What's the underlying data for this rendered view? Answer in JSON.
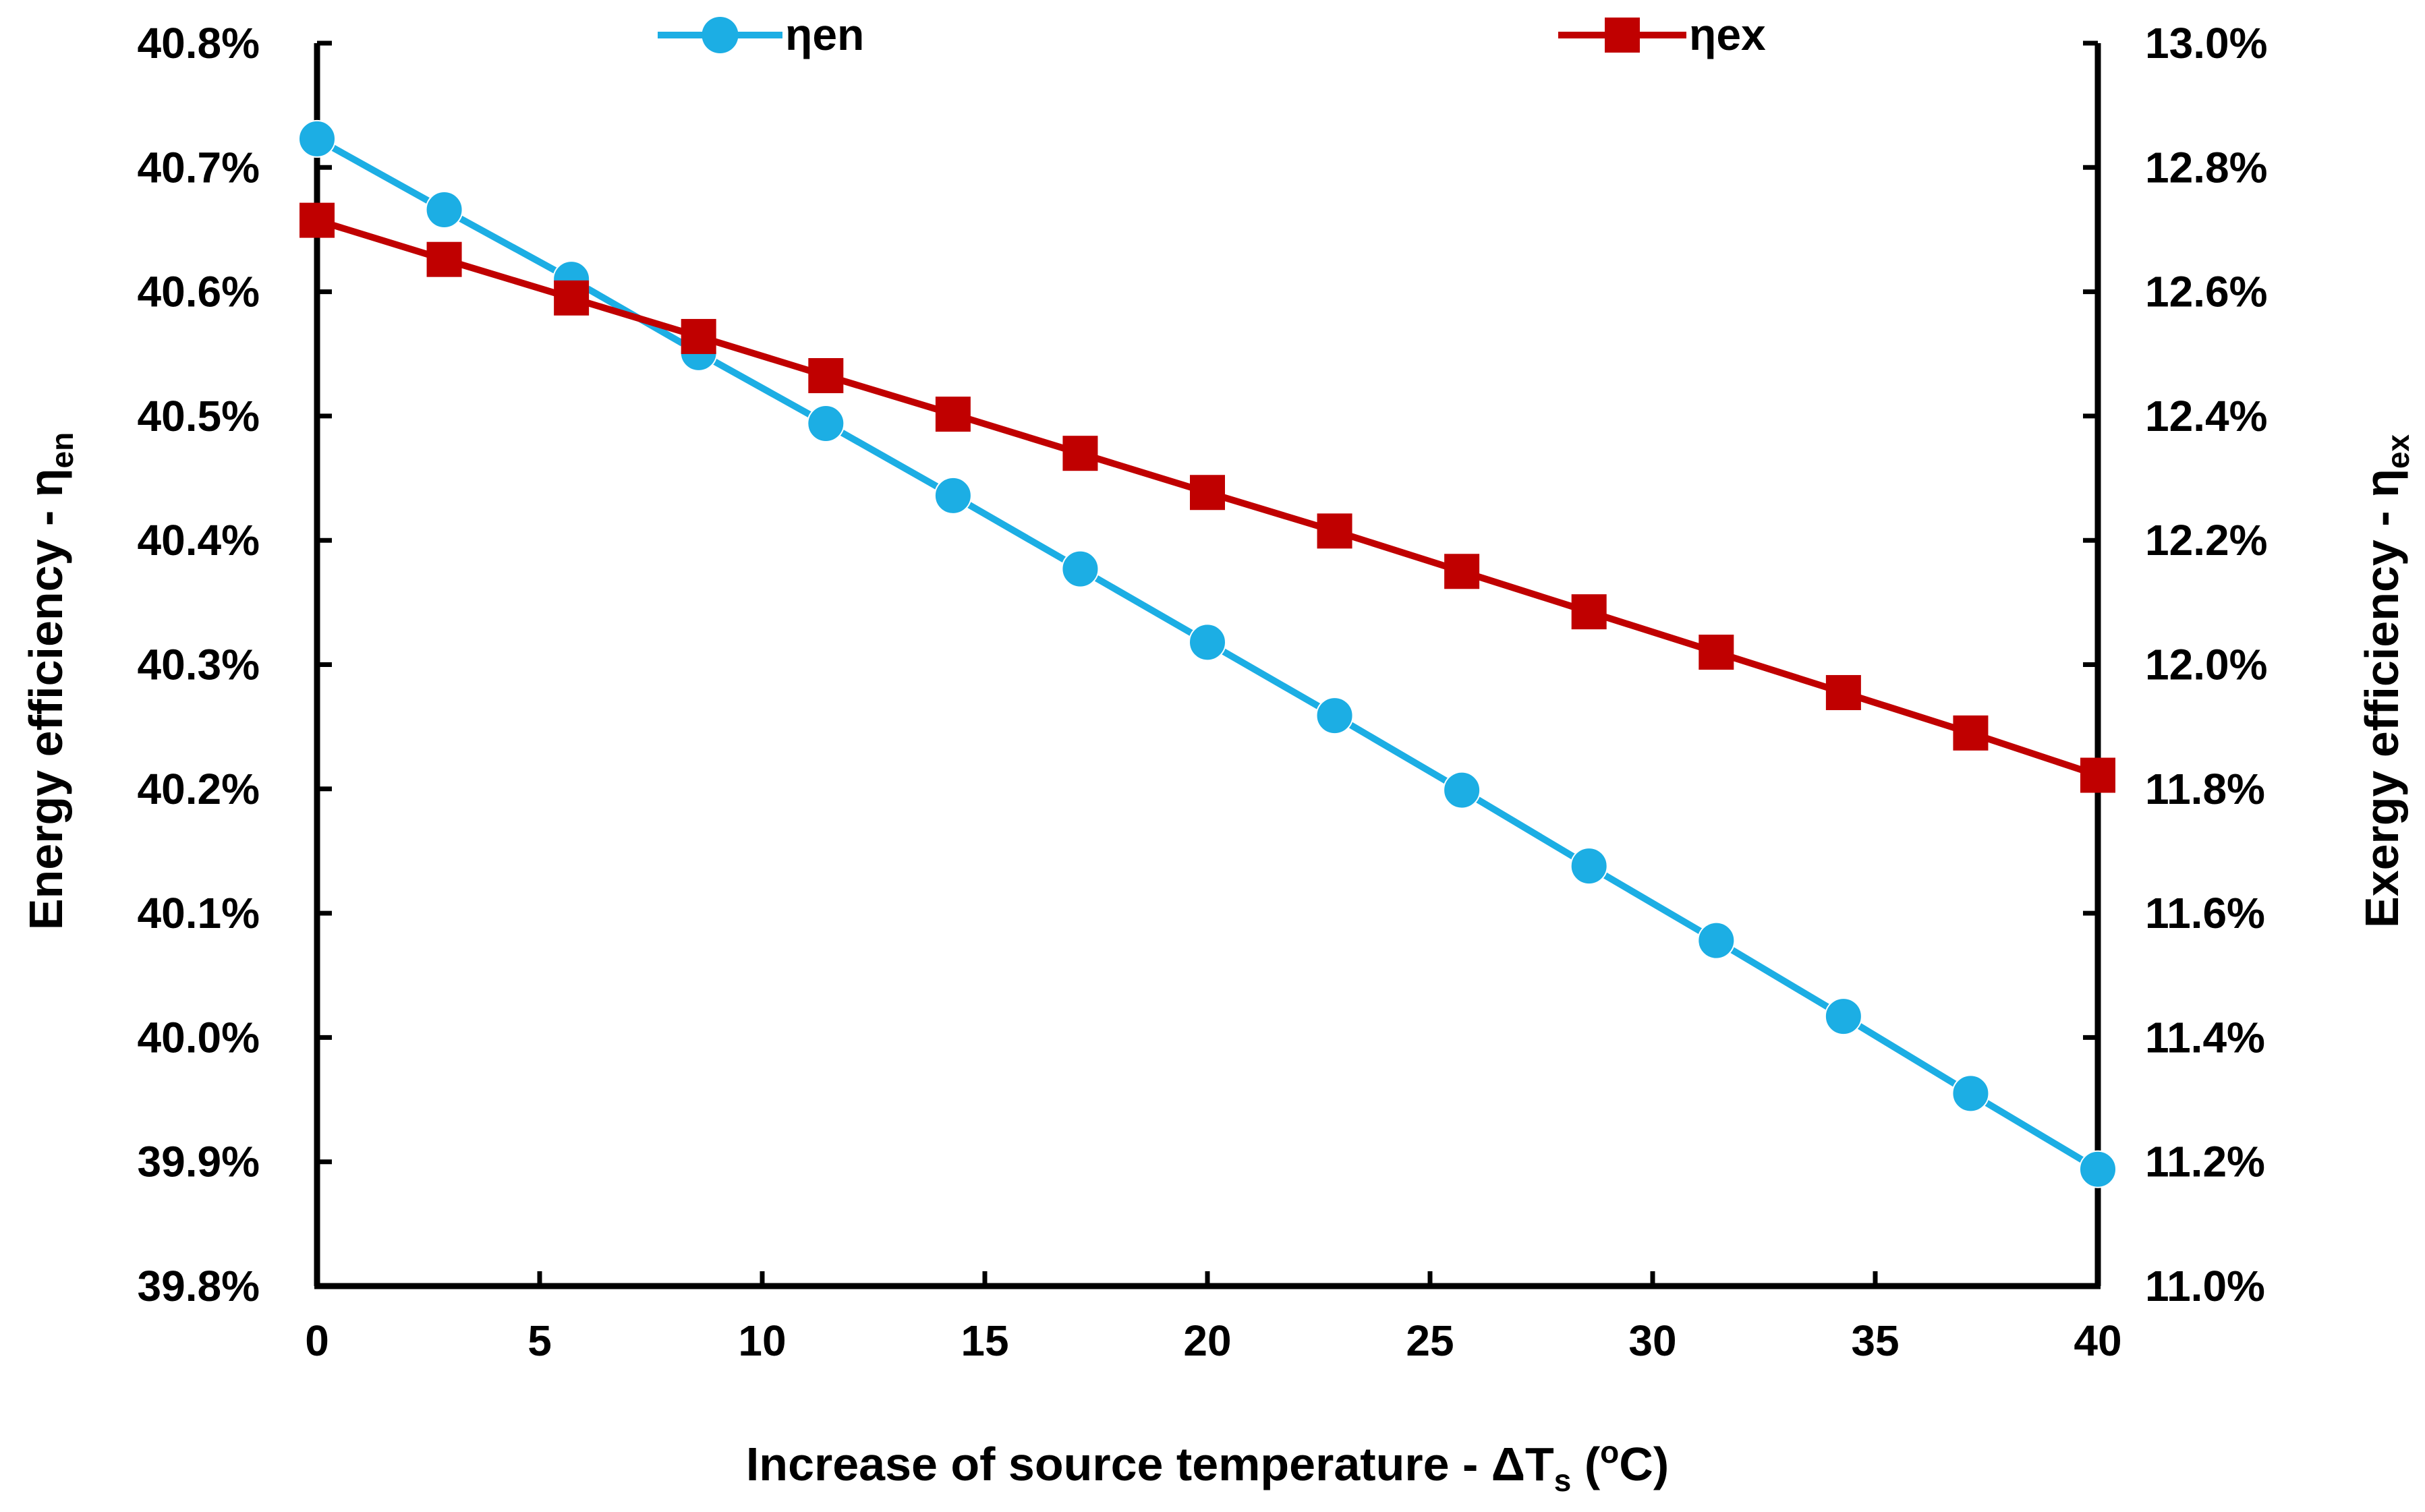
{
  "chart_data": {
    "type": "line",
    "title": "",
    "xlabel": {
      "main": "Increase of source temperature - ΔT",
      "sub": "s",
      "open": " (",
      "sup": "o",
      "unit": "C)"
    },
    "ylabel_left": {
      "main": "Energy efficiency - η",
      "sub": "en"
    },
    "ylabel_right": {
      "main": "Exergy efficiency - η",
      "sub": "ex"
    },
    "xlim": [
      0,
      40
    ],
    "ylim_left": [
      0.398,
      0.408
    ],
    "ylim_right": [
      0.11,
      0.13
    ],
    "x_ticks": [
      0,
      5,
      10,
      15,
      20,
      25,
      30,
      35,
      40
    ],
    "x_tick_labels": [
      "0",
      "5",
      "10",
      "15",
      "20",
      "25",
      "30",
      "35",
      "40"
    ],
    "y_left_ticks": [
      0.398,
      0.399,
      0.4,
      0.401,
      0.402,
      0.403,
      0.404,
      0.405,
      0.406,
      0.407,
      0.408
    ],
    "y_left_tick_labels": [
      "39.8%",
      "39.9%",
      "40.0%",
      "40.1%",
      "40.2%",
      "40.3%",
      "40.4%",
      "40.5%",
      "40.6%",
      "40.7%",
      "40.8%"
    ],
    "y_right_ticks": [
      0.11,
      0.112,
      0.114,
      0.116,
      0.118,
      0.12,
      0.122,
      0.124,
      0.126,
      0.128,
      0.13
    ],
    "y_right_tick_labels": [
      "11.0%",
      "11.2%",
      "11.4%",
      "11.6%",
      "11.8%",
      "12.0%",
      "12.2%",
      "12.4%",
      "12.6%",
      "12.8%",
      "13.0%"
    ],
    "legend_position": "top",
    "series": [
      {
        "name": "ηen",
        "axis": "left",
        "color": "#1CAEE4",
        "marker": "circle",
        "x": [
          0,
          2.857,
          5.714,
          8.571,
          11.429,
          14.286,
          17.143,
          20,
          22.857,
          25.714,
          28.571,
          31.429,
          34.286,
          37.143,
          40
        ],
        "values": [
          0.40723,
          0.40666,
          0.4061,
          0.40551,
          0.40494,
          0.40436,
          0.40377,
          0.40318,
          0.40259,
          0.40199,
          0.40138,
          0.40078,
          0.40017,
          0.39955,
          0.39894
        ]
      },
      {
        "name": "ηex",
        "axis": "right",
        "color": "#C00000",
        "marker": "square",
        "x": [
          0,
          2.857,
          5.714,
          8.571,
          11.429,
          14.286,
          17.143,
          20,
          22.857,
          25.714,
          28.571,
          31.429,
          34.286,
          37.143,
          40
        ],
        "values": [
          0.12715,
          0.12652,
          0.1259,
          0.12528,
          0.12465,
          0.12403,
          0.1234,
          0.12277,
          0.12215,
          0.1215,
          0.12085,
          0.1202,
          0.11955,
          0.1189,
          0.11822
        ]
      }
    ]
  }
}
